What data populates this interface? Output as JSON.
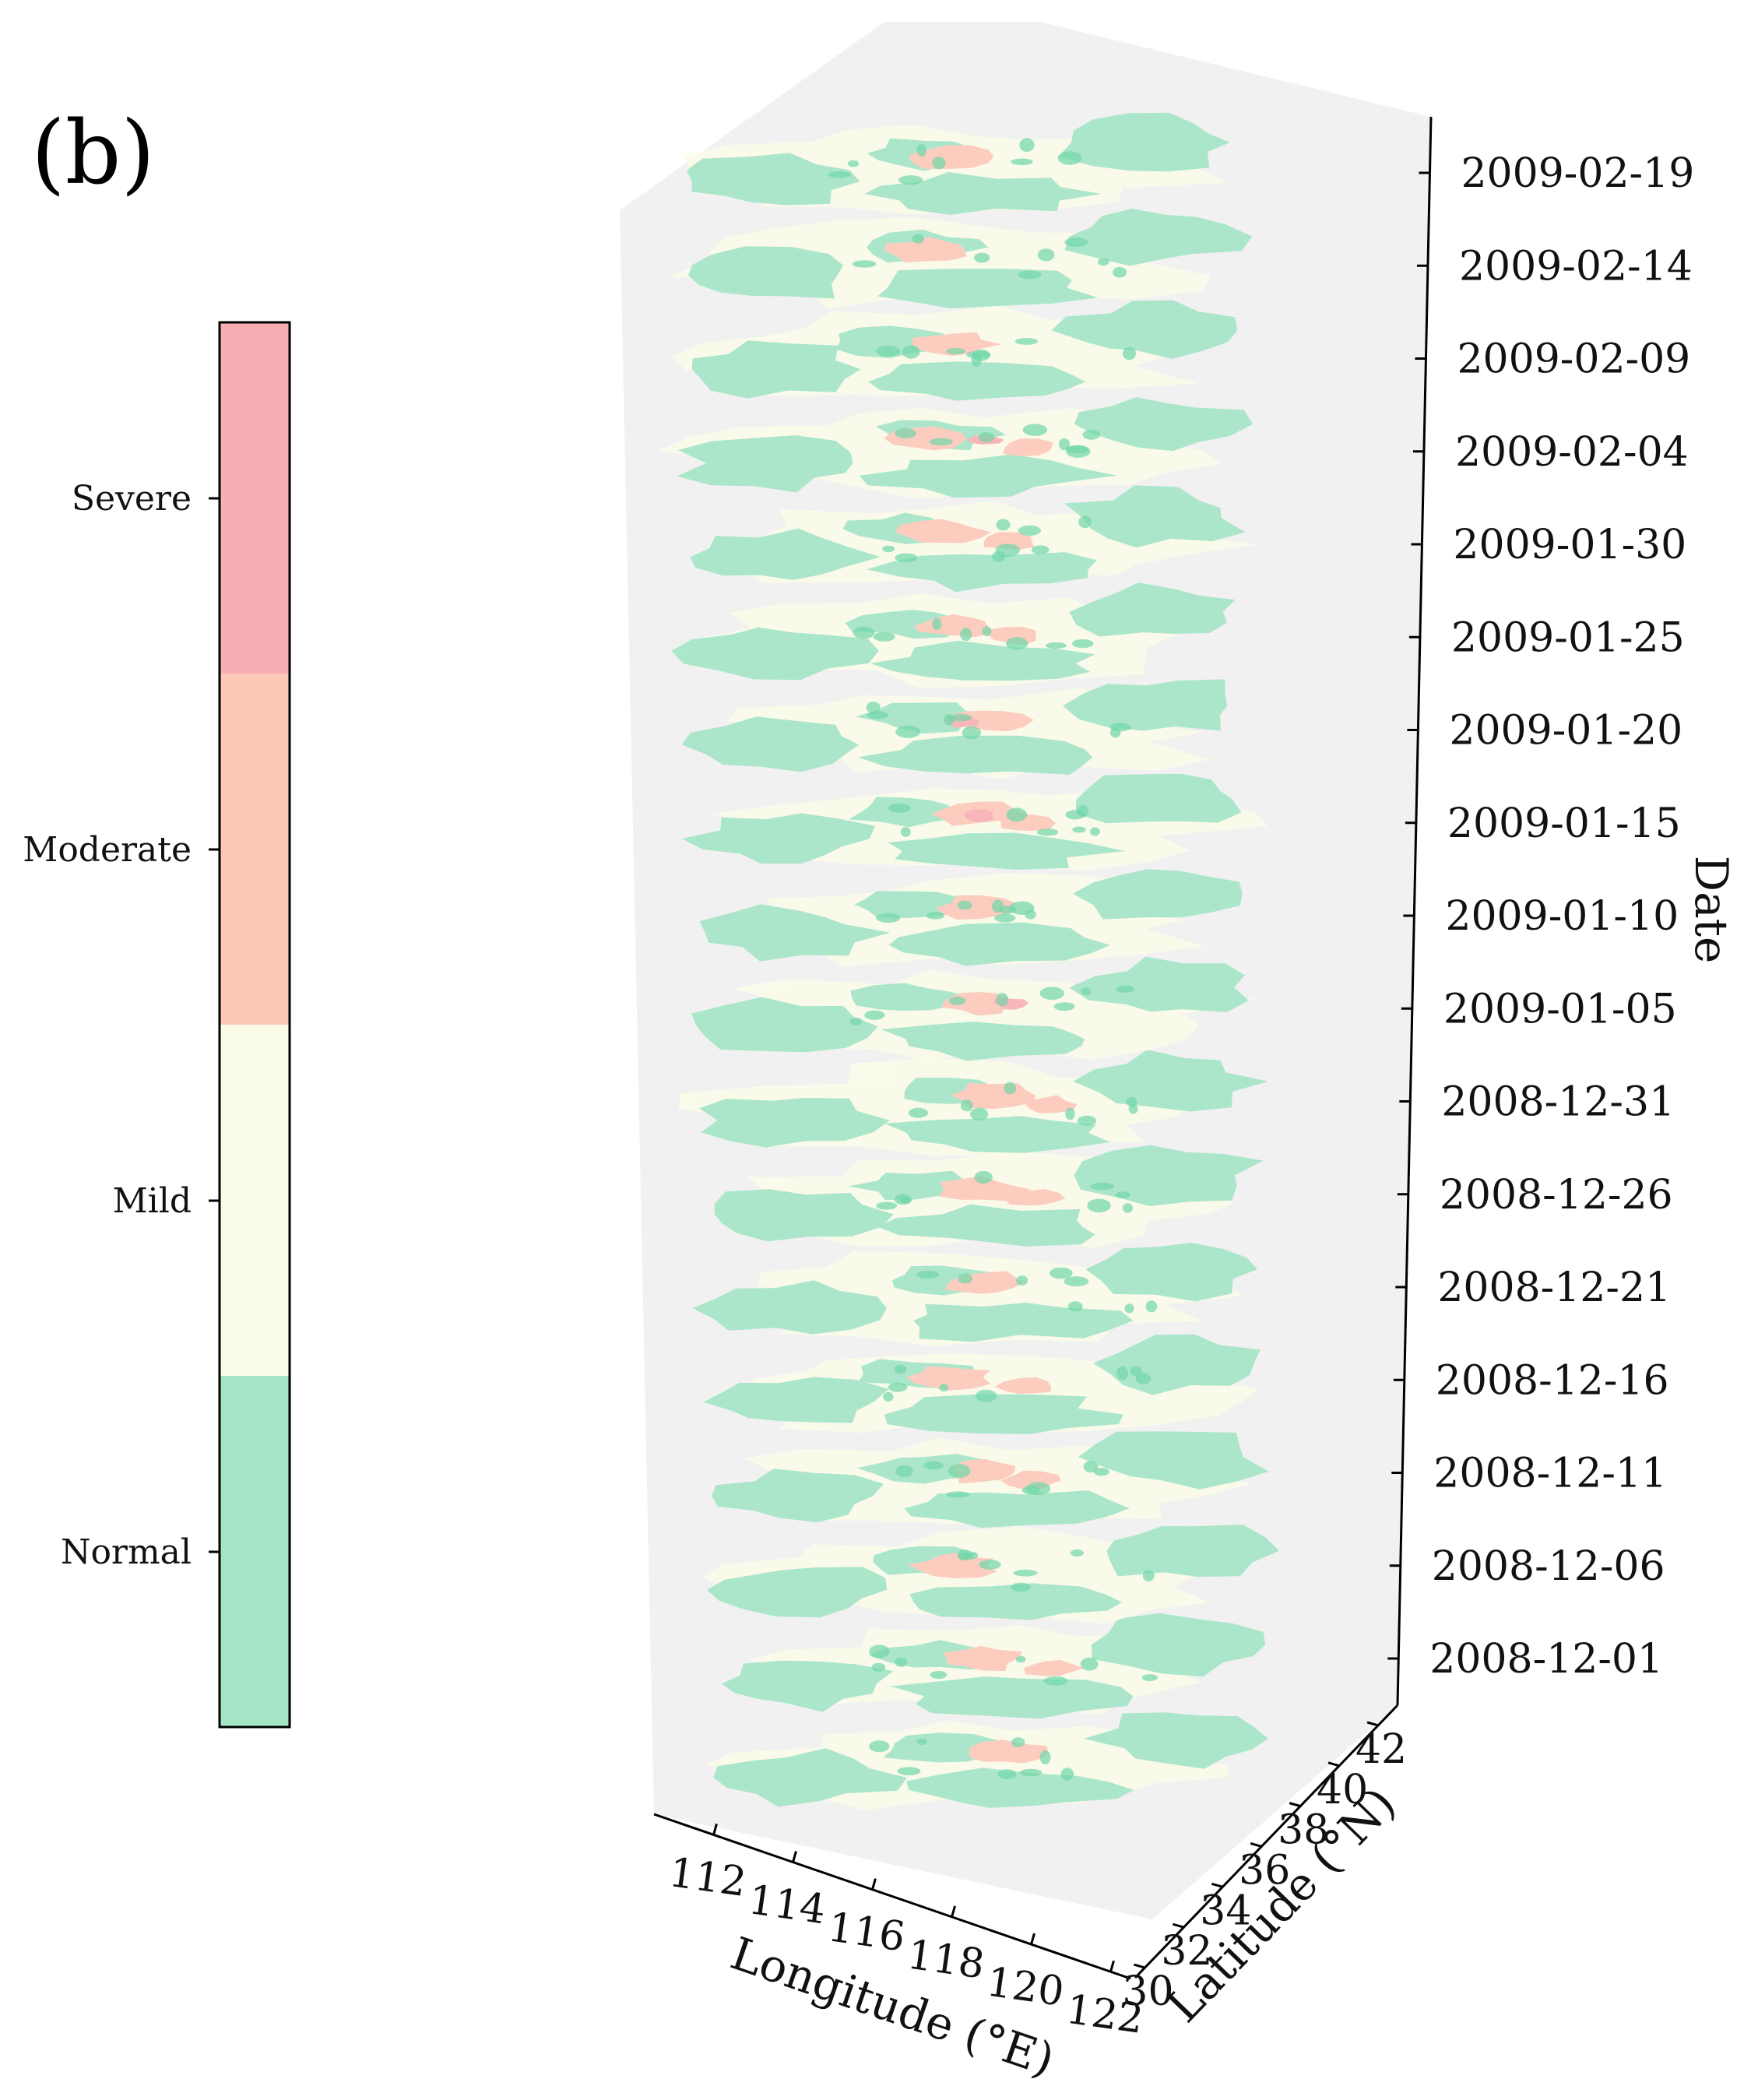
{
  "panel_label": "(b)",
  "chart_data": {
    "type": "3d-stacked-map",
    "title": "",
    "colorbar": {
      "categories": [
        "Severe",
        "Moderate",
        "Mild",
        "Normal"
      ],
      "colors": [
        "#f9aeb3",
        "#fec8b8",
        "#fbfce8",
        "#a3e5c5"
      ]
    },
    "x_axis": {
      "label": "Longitude (°E)",
      "ticks": [
        "112",
        "114",
        "116",
        "118",
        "120",
        "122"
      ],
      "range": [
        110.5,
        122.5
      ]
    },
    "y_axis": {
      "label": "Latitude (°N)",
      "ticks": [
        "30",
        "32",
        "34",
        "36",
        "38",
        "40",
        "42"
      ],
      "range": [
        29.5,
        43
      ]
    },
    "z_axis": {
      "label": "Date",
      "ticks": [
        "2008-12-01",
        "2008-12-06",
        "2008-12-11",
        "2008-12-16",
        "2008-12-21",
        "2008-12-26",
        "2008-12-31",
        "2009-01-05",
        "2009-01-10",
        "2009-01-15",
        "2009-01-20",
        "2009-01-25",
        "2009-01-30",
        "2009-02-04",
        "2009-02-09",
        "2009-02-14",
        "2009-02-19"
      ]
    }
  }
}
